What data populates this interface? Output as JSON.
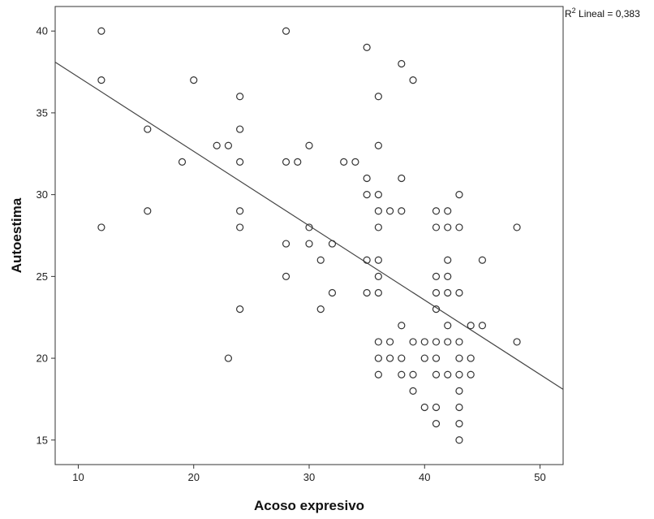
{
  "chart_data": {
    "type": "scatter",
    "xlabel": "Acoso expresivo",
    "ylabel": "Autoestima",
    "xlim": [
      8,
      52
    ],
    "ylim": [
      13.5,
      41.5
    ],
    "xticks": [
      10,
      20,
      30,
      40,
      50
    ],
    "yticks": [
      15,
      20,
      25,
      30,
      35,
      40
    ],
    "annotation": {
      "prefix": "R",
      "sup": "2",
      "suffix": " Lineal = 0,383"
    },
    "fit_line": {
      "type": "linear",
      "x": [
        8,
        52
      ],
      "y": [
        38.1,
        18.1
      ]
    },
    "marker": {
      "shape": "open-circle",
      "stroke": "#333333"
    },
    "line_color": "#444444",
    "points": [
      [
        12,
        40
      ],
      [
        12,
        37
      ],
      [
        12,
        28
      ],
      [
        16,
        34
      ],
      [
        16,
        29
      ],
      [
        19,
        32
      ],
      [
        20,
        37
      ],
      [
        22,
        33
      ],
      [
        23,
        33
      ],
      [
        23,
        20
      ],
      [
        24,
        36
      ],
      [
        24,
        34
      ],
      [
        24,
        32
      ],
      [
        24,
        29
      ],
      [
        24,
        28
      ],
      [
        24,
        23
      ],
      [
        28,
        40
      ],
      [
        28,
        32
      ],
      [
        28,
        27
      ],
      [
        28,
        25
      ],
      [
        29,
        32
      ],
      [
        30,
        33
      ],
      [
        30,
        28
      ],
      [
        30,
        27
      ],
      [
        31,
        26
      ],
      [
        31,
        23
      ],
      [
        32,
        27
      ],
      [
        32,
        24
      ],
      [
        33,
        32
      ],
      [
        34,
        32
      ],
      [
        35,
        39
      ],
      [
        35,
        31
      ],
      [
        35,
        30
      ],
      [
        35,
        26
      ],
      [
        35,
        24
      ],
      [
        36,
        36
      ],
      [
        36,
        33
      ],
      [
        36,
        30
      ],
      [
        36,
        29
      ],
      [
        36,
        28
      ],
      [
        36,
        26
      ],
      [
        36,
        25
      ],
      [
        36,
        24
      ],
      [
        36,
        21
      ],
      [
        36,
        20
      ],
      [
        36,
        19
      ],
      [
        37,
        29
      ],
      [
        37,
        21
      ],
      [
        37,
        20
      ],
      [
        38,
        38
      ],
      [
        38,
        31
      ],
      [
        38,
        29
      ],
      [
        38,
        22
      ],
      [
        38,
        20
      ],
      [
        38,
        19
      ],
      [
        39,
        37
      ],
      [
        39,
        21
      ],
      [
        39,
        19
      ],
      [
        39,
        18
      ],
      [
        40,
        21
      ],
      [
        40,
        20
      ],
      [
        40,
        17
      ],
      [
        41,
        29
      ],
      [
        41,
        28
      ],
      [
        41,
        25
      ],
      [
        41,
        24
      ],
      [
        41,
        23
      ],
      [
        41,
        21
      ],
      [
        41,
        20
      ],
      [
        41,
        19
      ],
      [
        41,
        17
      ],
      [
        41,
        16
      ],
      [
        42,
        29
      ],
      [
        42,
        28
      ],
      [
        42,
        26
      ],
      [
        42,
        25
      ],
      [
        42,
        24
      ],
      [
        42,
        22
      ],
      [
        42,
        21
      ],
      [
        42,
        19
      ],
      [
        43,
        30
      ],
      [
        43,
        28
      ],
      [
        43,
        24
      ],
      [
        43,
        21
      ],
      [
        43,
        20
      ],
      [
        43,
        19
      ],
      [
        43,
        18
      ],
      [
        43,
        17
      ],
      [
        43,
        16
      ],
      [
        43,
        15
      ],
      [
        44,
        22
      ],
      [
        44,
        20
      ],
      [
        44,
        19
      ],
      [
        45,
        26
      ],
      [
        45,
        22
      ],
      [
        48,
        28
      ],
      [
        48,
        21
      ]
    ]
  }
}
